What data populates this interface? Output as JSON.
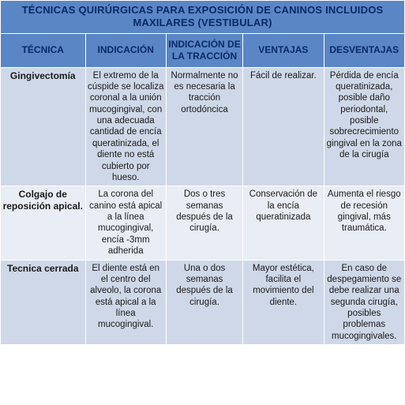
{
  "table": {
    "title": "TÉCNICAS QUIRÚRGICAS PARA EXPOSICIÓN DE CANINOS INCLUIDOS MAXILARES (VESTIBULAR)",
    "columns": [
      "TÉCNICA",
      "INDICACIÓN",
      "INDICACIÓN DE LA TRACCIÓN",
      "VENTAJAS",
      "DESVENTAJAS"
    ],
    "rows": [
      {
        "tecnica": "Gingivectomía",
        "indicacion": "El extremo de la cúspide se localiza coronal a la unión mucogingival, con una adecuada cantidad de encía queratinizada, el diente no está cubierto por hueso.",
        "traccion": "Normalmente no es necesaria la tracción ortodóncica",
        "ventajas": "Fácil de realizar.",
        "desventajas": "Pérdida de encía queratinizada, posible daño periodontal, posible sobrecrecimiento gingival en la zona de la cirugía"
      },
      {
        "tecnica": "Colgajo de reposición apical.",
        "indicacion": "La corona del canino está apical a la línea mucogingival, encía -3mm adherida",
        "traccion": "Dos o tres semanas después de la cirugía.",
        "ventajas": "Conservación de la encía queratinizada",
        "desventajas": "Aumenta el riesgo de recesión gingival, más traumática."
      },
      {
        "tecnica": "Tecnica cerrada",
        "indicacion": "El diente está en el centro del alveolo, la corona está apical a la línea mucogingival.",
        "traccion": "Una o dos semanas después de la cirugía.",
        "ventajas": "Mayor estética, facilita el movimiento del diente.",
        "desventajas": "En caso de despegamiento se debe realizar una segunda cirugía, posibles problemas mucogingivales."
      }
    ],
    "colors": {
      "header_bg": "#5a86c5",
      "header_text": "#0a2a66",
      "row_alt_a": "#cfd8e8",
      "row_alt_b": "#e9edf5",
      "border": "#ffffff",
      "body_text": "#1a1a1a"
    },
    "typography": {
      "title_fontsize_pt": 10,
      "header_fontsize_pt": 9,
      "body_fontsize_pt": 8.5,
      "font_family": "Arial"
    }
  }
}
